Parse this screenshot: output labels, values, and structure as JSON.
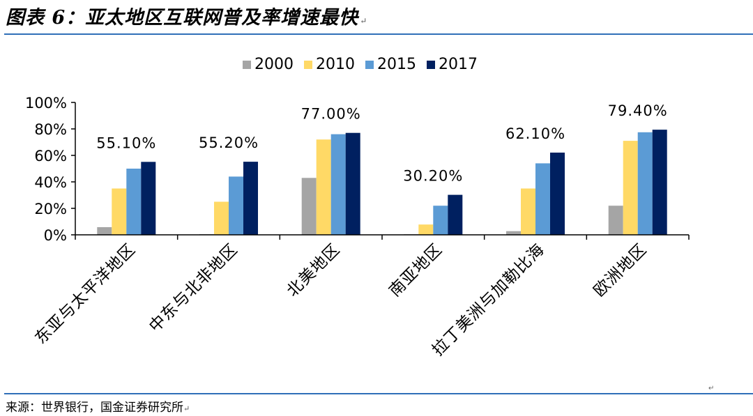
{
  "figure": {
    "title": "图表 6：亚太地区互联网普及率增速最快",
    "title_mark": "↵",
    "source": "来源：世界银行，国金证券研究所",
    "source_mark": "↵",
    "side_mark": "↵"
  },
  "chart_data": {
    "type": "bar",
    "title": "",
    "xlabel": "",
    "ylabel": "",
    "ylim": [
      0,
      100
    ],
    "yticks": [
      "0%",
      "20%",
      "40%",
      "60%",
      "80%",
      "100%"
    ],
    "ytick_values": [
      0,
      20,
      40,
      60,
      80,
      100
    ],
    "grid": false,
    "legend_position": "top",
    "categories": [
      "东亚与太平洋地区",
      "中东与北非地区",
      "北美地区",
      "南亚地区",
      "拉丁美洲与加勒比海",
      "欧洲地区"
    ],
    "series": [
      {
        "name": "2000",
        "color": "#a5a5a5",
        "values": [
          5.8,
          0.5,
          43.0,
          0.4,
          2.8,
          22.0
        ]
      },
      {
        "name": "2010",
        "color": "#ffd966",
        "values": [
          35.0,
          25.0,
          72.0,
          7.8,
          35.0,
          71.0
        ]
      },
      {
        "name": "2015",
        "color": "#5b9bd5",
        "values": [
          50.0,
          44.0,
          76.0,
          22.0,
          54.0,
          77.5
        ]
      },
      {
        "name": "2017",
        "color": "#002060",
        "values": [
          55.1,
          55.2,
          77.0,
          30.2,
          62.1,
          79.4
        ]
      }
    ],
    "data_labels": [
      "55.10%",
      "55.20%",
      "77.00%",
      "30.20%",
      "62.10%",
      "79.40%"
    ]
  }
}
